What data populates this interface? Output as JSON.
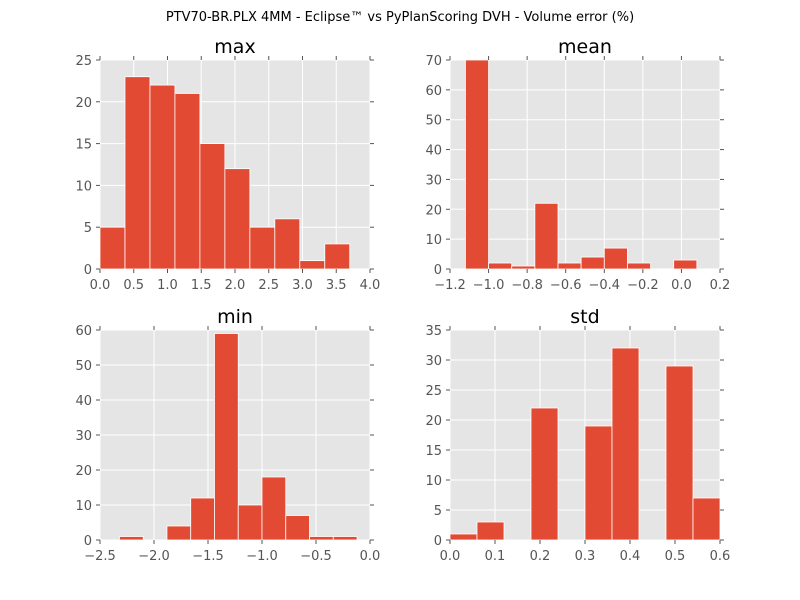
{
  "figure_title": "PTV70-BR.PLX 4MM - Eclipse™ vs PyPlanScoring DVH - Volume error (%)",
  "colors": {
    "bar": "#e24a33",
    "panel_bg": "#e5e5e5",
    "grid": "#ffffff",
    "text": "#555555"
  },
  "chart_data": [
    {
      "type": "bar",
      "title": "max",
      "xlim": [
        0.0,
        4.0
      ],
      "ylim": [
        0,
        25
      ],
      "xticks": [
        "0.0",
        "0.5",
        "1.0",
        "1.5",
        "2.0",
        "2.5",
        "3.0",
        "3.5",
        "4.0"
      ],
      "yticks": [
        "0",
        "5",
        "10",
        "15",
        "20",
        "25"
      ],
      "bins": [
        {
          "x0": 0.0,
          "x1": 0.37,
          "count": 5
        },
        {
          "x0": 0.37,
          "x1": 0.74,
          "count": 23
        },
        {
          "x0": 0.74,
          "x1": 1.11,
          "count": 22
        },
        {
          "x0": 1.11,
          "x1": 1.48,
          "count": 21
        },
        {
          "x0": 1.48,
          "x1": 1.85,
          "count": 15
        },
        {
          "x0": 1.85,
          "x1": 2.22,
          "count": 12
        },
        {
          "x0": 2.22,
          "x1": 2.59,
          "count": 5
        },
        {
          "x0": 2.59,
          "x1": 2.96,
          "count": 6
        },
        {
          "x0": 2.96,
          "x1": 3.33,
          "count": 1
        },
        {
          "x0": 3.33,
          "x1": 3.7,
          "count": 3
        }
      ]
    },
    {
      "type": "bar",
      "title": "mean",
      "xlim": [
        -1.2,
        0.2
      ],
      "ylim": [
        0,
        70
      ],
      "xticks": [
        "−1.2",
        "−1.0",
        "−0.8",
        "−0.6",
        "−0.4",
        "−0.2",
        "0.0",
        "0.2"
      ],
      "yticks": [
        "0",
        "10",
        "20",
        "30",
        "40",
        "50",
        "60",
        "70"
      ],
      "bins": [
        {
          "x0": -1.12,
          "x1": -1.0,
          "count": 70
        },
        {
          "x0": -1.0,
          "x1": -0.88,
          "count": 2
        },
        {
          "x0": -0.88,
          "x1": -0.76,
          "count": 1
        },
        {
          "x0": -0.76,
          "x1": -0.64,
          "count": 22
        },
        {
          "x0": -0.64,
          "x1": -0.52,
          "count": 2
        },
        {
          "x0": -0.52,
          "x1": -0.4,
          "count": 4
        },
        {
          "x0": -0.4,
          "x1": -0.28,
          "count": 7
        },
        {
          "x0": -0.28,
          "x1": -0.16,
          "count": 2
        },
        {
          "x0": -0.16,
          "x1": -0.04,
          "count": 0
        },
        {
          "x0": -0.04,
          "x1": 0.08,
          "count": 3
        }
      ]
    },
    {
      "type": "bar",
      "title": "min",
      "xlim": [
        -2.5,
        0.0
      ],
      "ylim": [
        0,
        60
      ],
      "xticks": [
        "−2.5",
        "−2.0",
        "−1.5",
        "−1.0",
        "−0.5",
        "0.0"
      ],
      "yticks": [
        "0",
        "10",
        "20",
        "30",
        "40",
        "50",
        "60"
      ],
      "bins": [
        {
          "x0": -2.32,
          "x1": -2.1,
          "count": 1
        },
        {
          "x0": -2.1,
          "x1": -1.88,
          "count": 0
        },
        {
          "x0": -1.88,
          "x1": -1.66,
          "count": 4
        },
        {
          "x0": -1.66,
          "x1": -1.44,
          "count": 12
        },
        {
          "x0": -1.44,
          "x1": -1.22,
          "count": 59
        },
        {
          "x0": -1.22,
          "x1": -1.0,
          "count": 10
        },
        {
          "x0": -1.0,
          "x1": -0.78,
          "count": 18
        },
        {
          "x0": -0.78,
          "x1": -0.56,
          "count": 7
        },
        {
          "x0": -0.56,
          "x1": -0.34,
          "count": 1
        },
        {
          "x0": -0.34,
          "x1": -0.12,
          "count": 1
        }
      ]
    },
    {
      "type": "bar",
      "title": "std",
      "xlim": [
        0.0,
        0.6
      ],
      "ylim": [
        0,
        35
      ],
      "xticks": [
        "0.0",
        "0.1",
        "0.2",
        "0.3",
        "0.4",
        "0.5",
        "0.6"
      ],
      "yticks": [
        "0",
        "5",
        "10",
        "15",
        "20",
        "25",
        "30",
        "35"
      ],
      "bins": [
        {
          "x0": 0.0,
          "x1": 0.06,
          "count": 1
        },
        {
          "x0": 0.06,
          "x1": 0.12,
          "count": 3
        },
        {
          "x0": 0.12,
          "x1": 0.18,
          "count": 0
        },
        {
          "x0": 0.18,
          "x1": 0.24,
          "count": 22
        },
        {
          "x0": 0.24,
          "x1": 0.3,
          "count": 0
        },
        {
          "x0": 0.3,
          "x1": 0.36,
          "count": 19
        },
        {
          "x0": 0.36,
          "x1": 0.42,
          "count": 32
        },
        {
          "x0": 0.42,
          "x1": 0.48,
          "count": 0
        },
        {
          "x0": 0.48,
          "x1": 0.54,
          "count": 29
        },
        {
          "x0": 0.54,
          "x1": 0.6,
          "count": 7
        }
      ]
    }
  ]
}
